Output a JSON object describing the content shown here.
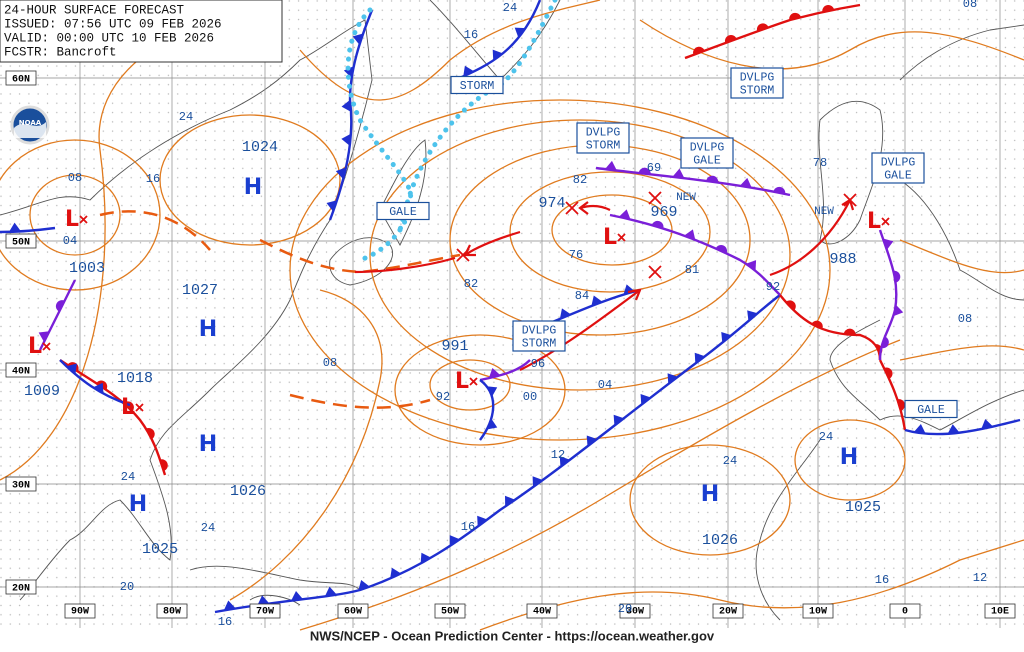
{
  "header": {
    "lines": [
      "24-HOUR SURFACE FORECAST",
      "ISSUED: 07:56 UTC 09 FEB 2026",
      "VALID: 00:00 UTC 10 FEB 2026",
      "FCSTR: Bancroft"
    ]
  },
  "logo": "NOAA",
  "footer": "NWS/NCEP - Ocean Prediction Center - https://ocean.weather.gov",
  "lat_labels": [
    "60N",
    "50N",
    "40N",
    "30N",
    "20N"
  ],
  "lon_labels": [
    "90W",
    "80W",
    "70W",
    "60W",
    "50W",
    "40W",
    "30W",
    "20W",
    "10W",
    "0",
    "10E"
  ],
  "centers": [
    {
      "symbol": "L",
      "pressure": 1003
    },
    {
      "symbol": "H",
      "pressure": 1024
    },
    {
      "symbol": "H",
      "pressure": 1027
    },
    {
      "symbol": "L",
      "pressure": 1009
    },
    {
      "symbol": "L",
      "pressure": 1018
    },
    {
      "symbol": "H",
      "pressure": 1026
    },
    {
      "symbol": "H",
      "pressure": 1025
    },
    {
      "symbol": "L",
      "pressure": 991
    },
    {
      "symbol": "L",
      "pressure": 969
    },
    {
      "symbol": "L",
      "pressure": 988
    },
    {
      "symbol": "H",
      "pressure": 1026
    },
    {
      "symbol": "H",
      "pressure": 1025
    }
  ],
  "storm_labels": [
    "974"
  ],
  "warnings": [
    {
      "lines": [
        "STORM"
      ]
    },
    {
      "lines": [
        "GALE"
      ]
    },
    {
      "lines": [
        "DVLPG",
        "STORM"
      ]
    },
    {
      "lines": [
        "DVLPG",
        "GALE"
      ]
    },
    {
      "lines": [
        "DVLPG",
        "STORM"
      ]
    },
    {
      "lines": [
        "DVLPG",
        "GALE"
      ]
    },
    {
      "lines": [
        "DVLPG",
        "STORM"
      ]
    },
    {
      "lines": [
        "GALE"
      ]
    }
  ],
  "new_labels": [
    "NEW",
    "NEW"
  ],
  "isobar_labels": [
    "08",
    "04",
    "16",
    "24",
    "24",
    "16",
    "82",
    "69",
    "78",
    "76",
    "82",
    "84",
    "81",
    "92",
    "96",
    "92",
    "00",
    "04",
    "08",
    "12",
    "24",
    "24",
    "08",
    "16",
    "24",
    "24",
    "20",
    "20",
    "16",
    "12",
    "16",
    "08"
  ]
}
